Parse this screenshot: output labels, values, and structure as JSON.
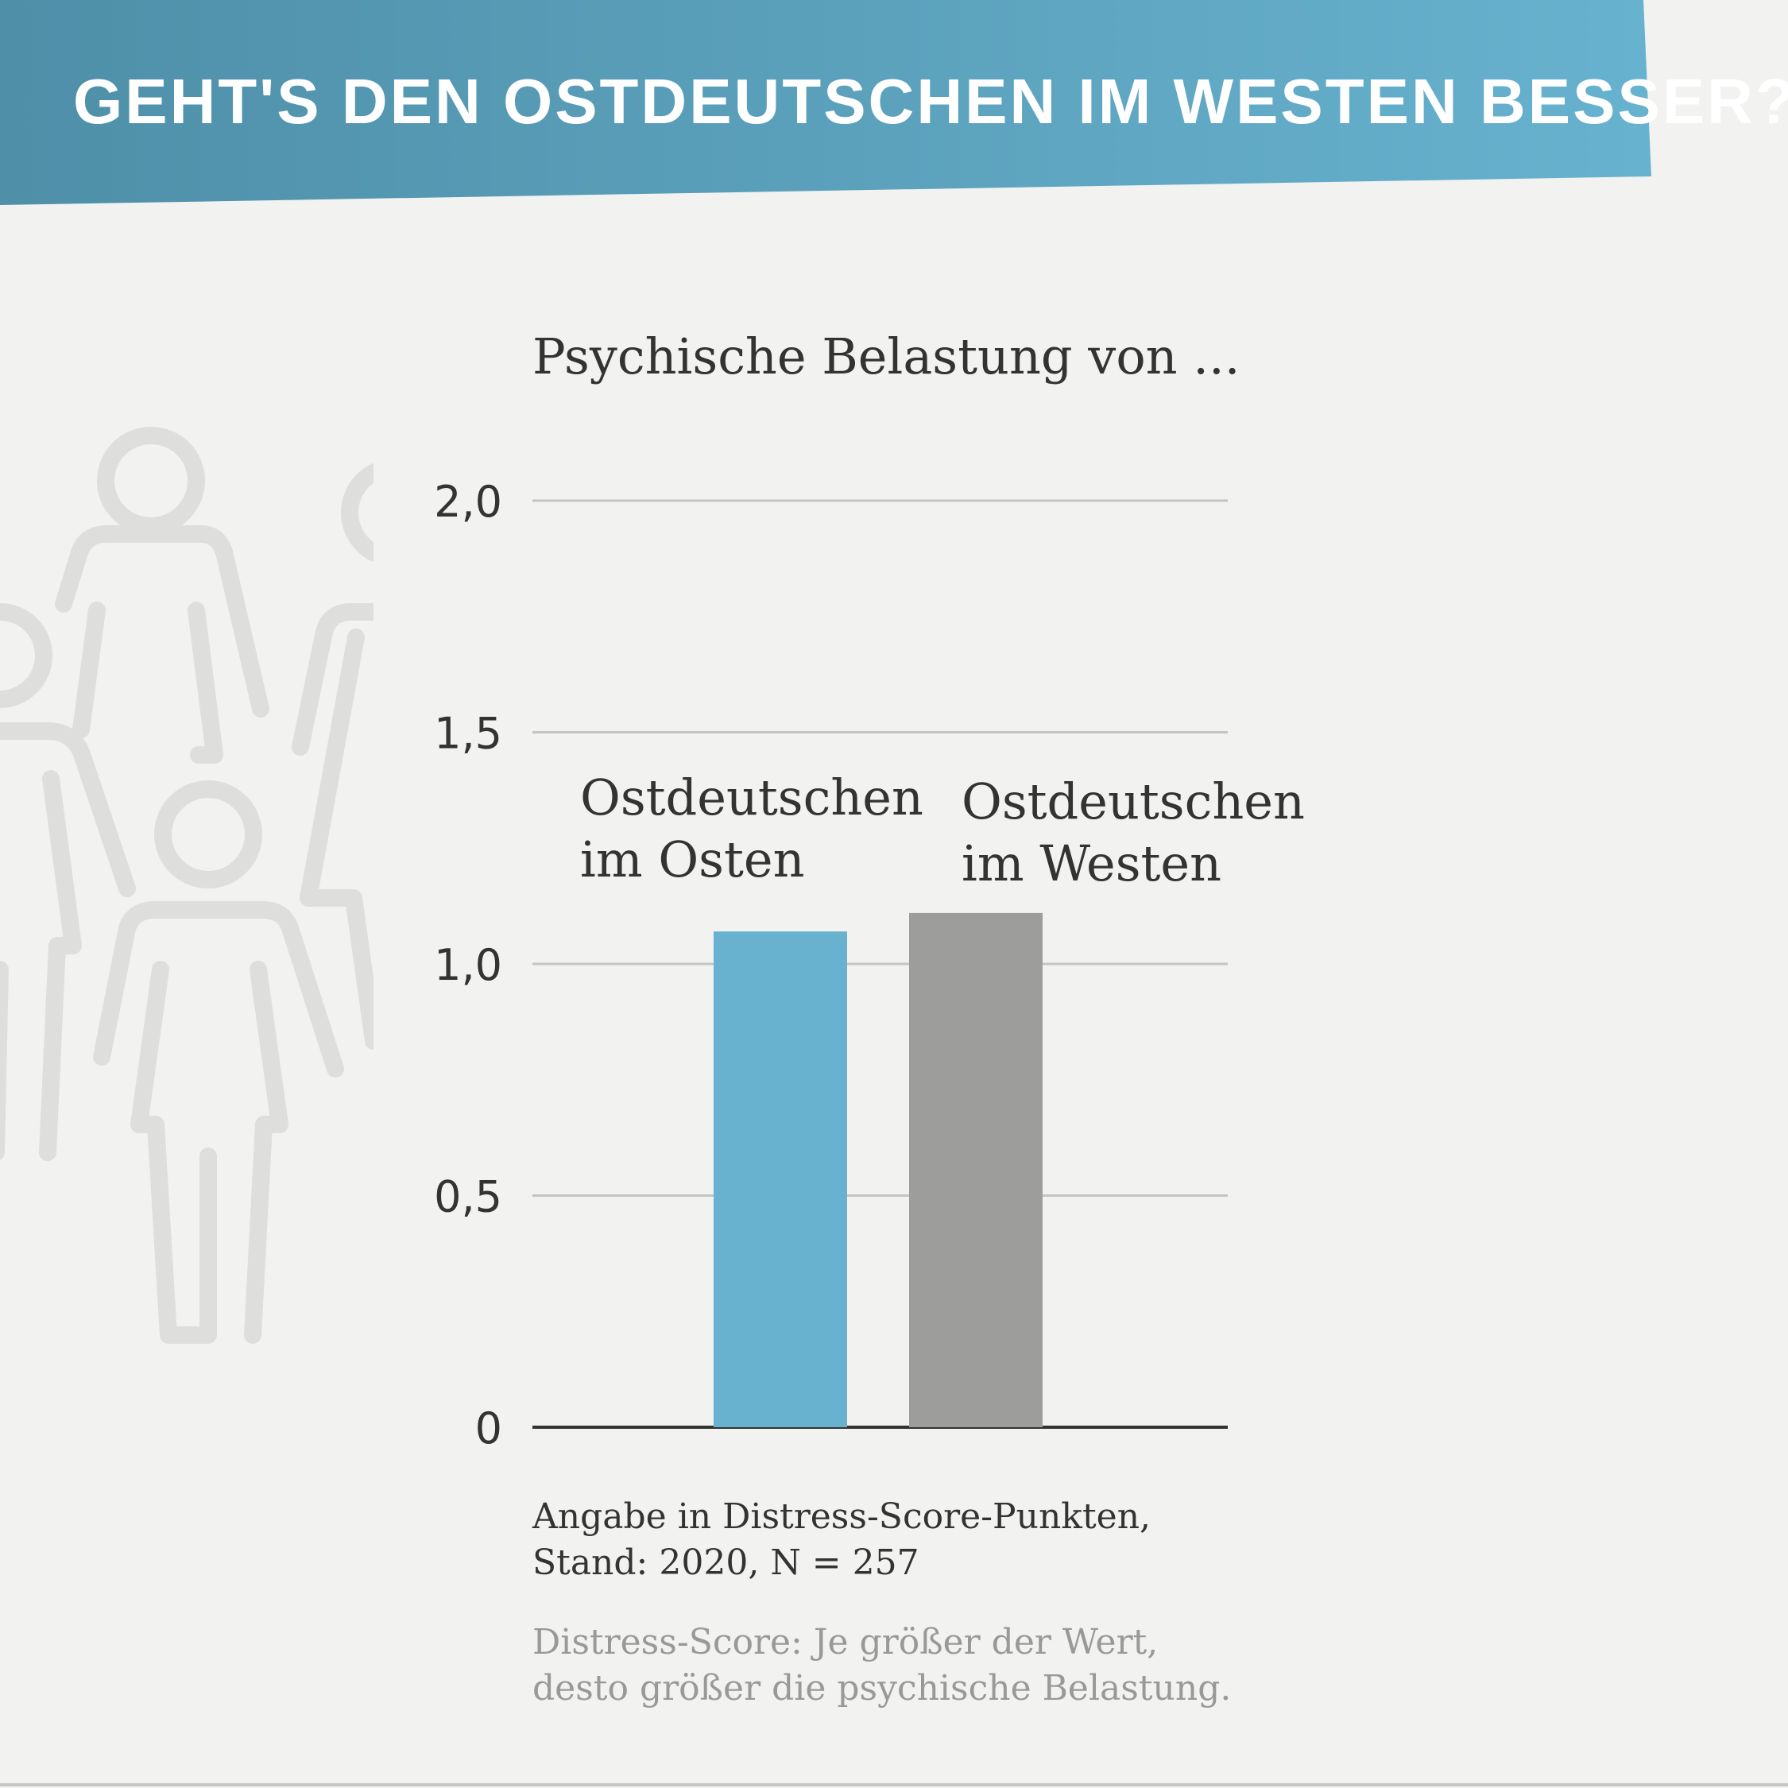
{
  "header": {
    "title": "GEHT'S DEN OSTDEUTSCHEN IM WESTEN BESSER?",
    "gradient_start": "#4f8fa8",
    "gradient_end": "#67b2cf"
  },
  "decoration": {
    "icon": "people-group-icon",
    "color": "#dededc"
  },
  "chart_data": {
    "type": "bar",
    "title": "Psychische Belastung von ...",
    "categories": [
      {
        "line1": "Ostdeutschen",
        "line2": "im Osten"
      },
      {
        "line1": "Ostdeutschen",
        "line2": "im Westen"
      }
    ],
    "values": [
      1.07,
      1.11
    ],
    "colors": [
      "#69b2cf",
      "#9d9d9c"
    ],
    "ylim": [
      0,
      2.0
    ],
    "yticks": [
      {
        "value": 0,
        "label": "0"
      },
      {
        "value": 0.5,
        "label": "0,5"
      },
      {
        "value": 1.0,
        "label": "1,0"
      },
      {
        "value": 1.5,
        "label": "1,5"
      },
      {
        "value": 2.0,
        "label": "2,0"
      }
    ],
    "grid": true,
    "legend": "none"
  },
  "footnote": {
    "line1": "Angabe in Distress-Score-Punkten,",
    "line2": "Stand: 2020, N = 257"
  },
  "explanation": {
    "line1": "Distress-Score: Je größer der Wert,",
    "line2": "desto größer die psychische Belastung."
  }
}
